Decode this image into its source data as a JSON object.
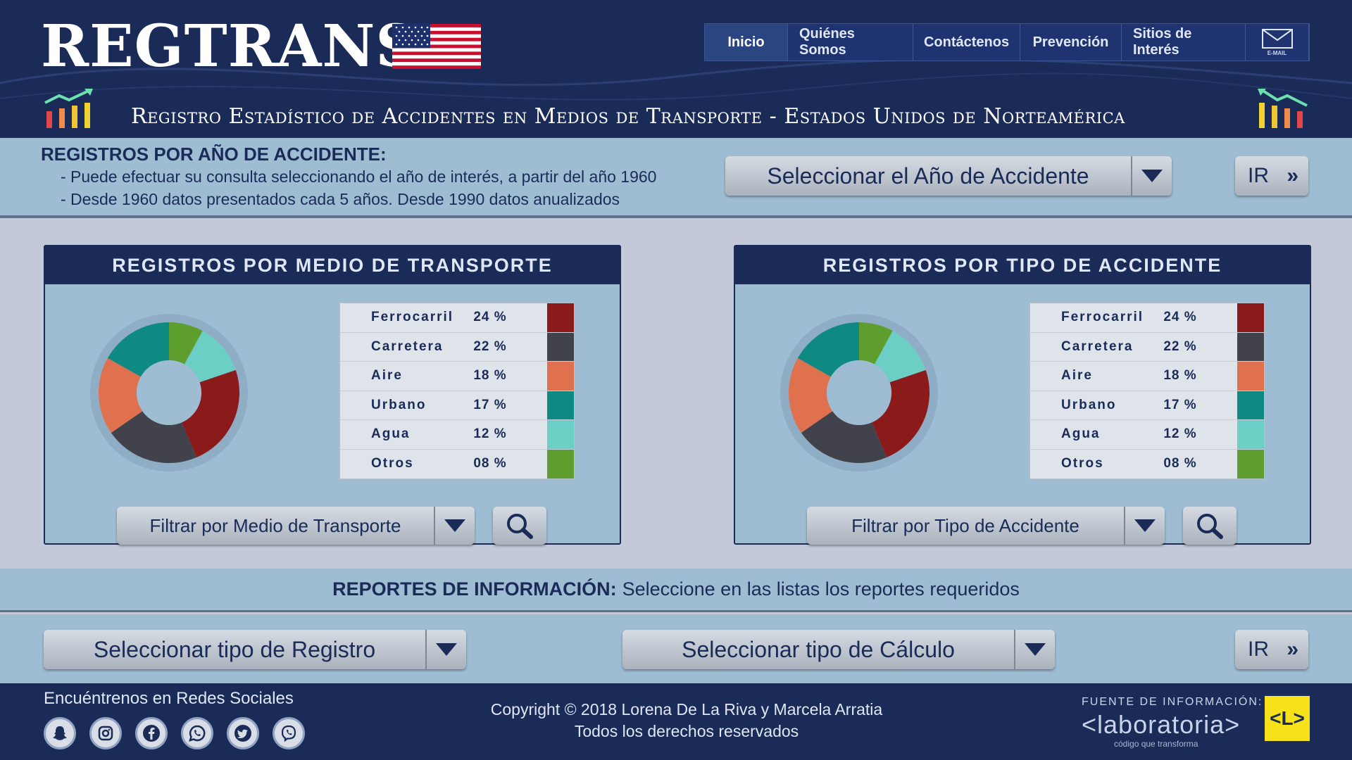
{
  "header": {
    "logo": "REGTRANS",
    "subtitle": "Registro Estadístico de Accidentes en Medios de Transporte - Estados Unidos de Norteamérica",
    "nav": [
      "Inicio",
      "Quiénes Somos",
      "Contáctenos",
      "Prevención",
      "Sitios de Interés"
    ],
    "email_label": "E-MAIL"
  },
  "year_section": {
    "title": "REGISTROS POR AÑO DE ACCIDENTE:",
    "line1": "- Puede efectuar su consulta seleccionando el año de interés, a partir del año 1960",
    "line2": "- Desde 1960 datos presentados cada 5 años. Desde 1990 datos anualizados",
    "select_label": "Seleccionar el Año de Accidente",
    "go_label": "IR",
    "go_chevron": "»"
  },
  "panel_transport": {
    "title": "REGISTROS POR MEDIO DE TRANSPORTE",
    "filter_label": "Filtrar por Medio de Transporte"
  },
  "panel_accident": {
    "title": "REGISTROS POR TIPO DE ACCIDENTE",
    "filter_label": "Filtrar por Tipo de Accidente"
  },
  "chart_data": [
    {
      "type": "pie",
      "categories": [
        "Ferrocarril",
        "Carretera",
        "Aire",
        "Urbano",
        "Agua",
        "Otros"
      ],
      "values": [
        24,
        22,
        18,
        17,
        12,
        8
      ],
      "labels": [
        "24 %",
        "22 %",
        "18 %",
        "17 %",
        "12 %",
        "08 %"
      ],
      "colors": [
        "#8b1a1a",
        "#41424c",
        "#e0714f",
        "#0f8a82",
        "#6ccfc6",
        "#5e9e2f"
      ],
      "legend": "right",
      "title": "REGISTROS POR MEDIO DE TRANSPORTE"
    },
    {
      "type": "pie",
      "categories": [
        "Ferrocarril",
        "Carretera",
        "Aire",
        "Urbano",
        "Agua",
        "Otros"
      ],
      "values": [
        24,
        22,
        18,
        17,
        12,
        8
      ],
      "labels": [
        "24 %",
        "22 %",
        "18 %",
        "17 %",
        "12 %",
        "08 %"
      ],
      "colors": [
        "#8b1a1a",
        "#41424c",
        "#e0714f",
        "#0f8a82",
        "#6ccfc6",
        "#5e9e2f"
      ],
      "legend": "right",
      "title": "REGISTROS POR TIPO DE ACCIDENTE"
    }
  ],
  "reports": {
    "title": "REPORTES DE INFORMACIÓN:",
    "text": "Seleccione en las listas los reportes requeridos",
    "select_register": "Seleccionar  tipo de Registro",
    "select_calc": "Seleccionar tipo de Cálculo",
    "go_label": "IR",
    "go_chevron": "»"
  },
  "footer": {
    "social_title": "Encuéntrenos en Redes Sociales",
    "social_icons": [
      "snapchat-icon",
      "instagram-icon",
      "facebook-icon",
      "whatsapp-icon",
      "twitter-icon",
      "viber-icon"
    ],
    "copyright_line1": "Copyright © 2018 Lorena De La Riva y Marcela Arratia",
    "copyright_line2": "Todos los derechos reservados",
    "source_label": "FUENTE DE INFORMACIÓN:",
    "source_logo": "<laboratoria>",
    "source_tagline": "código que transforma",
    "source_badge": "<L>"
  },
  "colors": {
    "navy": "#1b2b58",
    "band": "#9ebdd3",
    "background": "#c3c9d9",
    "badge": "#f6e11a"
  }
}
